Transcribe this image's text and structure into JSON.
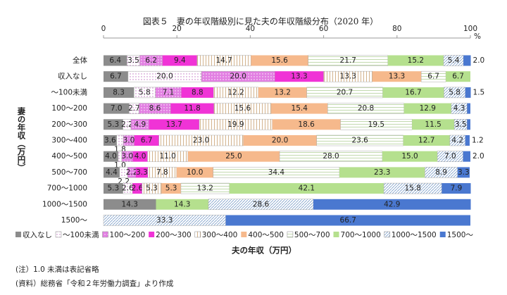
{
  "chart_data": {
    "type": "stacked-bar-horizontal",
    "title": "図表５　妻の年収階級別に見た夫の年収階級分布（2020 年）",
    "x_label": "夫の年収（万円）",
    "y_label": "妻の年収（万円）",
    "x_unit": "%",
    "categories": [
      "全体",
      "収入なし",
      "～100未満",
      "100～200",
      "200～300",
      "300～400",
      "400～500",
      "500～700",
      "700～1000",
      "1000～1500",
      "1500～"
    ],
    "xlim": [
      0,
      100
    ],
    "xticks": [
      0,
      20,
      40,
      60,
      80,
      100
    ],
    "legend": "bottom",
    "series": [
      {
        "name": "収入なし",
        "color": "#8c8c8c",
        "values": [
          6.4,
          6.7,
          8.3,
          7.0,
          5.3,
          3.6,
          4.0,
          4.4,
          5.3,
          14.3,
          null
        ],
        "value_labels": [
          "6.4",
          "6.7",
          "8.3",
          "7.0",
          "5.3",
          "3.6",
          "4.0",
          "4.4",
          "5.3",
          "14.3",
          null
        ]
      },
      {
        "name": "～100未満",
        "color": "#f0c8f0",
        "pattern": "dots",
        "values": [
          3.5,
          20.0,
          5.8,
          2.7,
          2.2,
          1.8,
          1.0,
          2.2,
          2.6,
          null,
          null
        ],
        "value_labels": [
          "3.5",
          "20.0",
          "5.8",
          "2.7",
          "2.2",
          "1.8",
          "1.0",
          "2.2",
          "2.6",
          null,
          null
        ]
      },
      {
        "name": "100～200",
        "color": "#e27fe2",
        "pattern": "dots",
        "values": [
          6.2,
          20.0,
          7.1,
          8.6,
          4.9,
          3.0,
          3.0,
          2.2,
          null,
          null,
          null
        ],
        "value_labels": [
          "6.2",
          "20.0",
          "7.1",
          "8.6",
          "4.9",
          "3.0",
          "3.0",
          "2.2",
          null,
          null,
          null
        ]
      },
      {
        "name": "200～300",
        "color": "#f033d6",
        "values": [
          9.4,
          13.3,
          8.8,
          11.8,
          13.7,
          6.7,
          4.0,
          3.3,
          2.6,
          null,
          null
        ],
        "value_labels": [
          "9.4",
          "13.3",
          "8.8",
          "11.8",
          "13.7",
          "6.7",
          "4.0",
          "3.3",
          "2.6",
          null,
          null
        ]
      },
      {
        "name": "300～400",
        "color": "#c8a070",
        "pattern": "vstripes",
        "values": [
          14.7,
          13.3,
          12.2,
          15.6,
          19.9,
          23.0,
          11.0,
          7.8,
          5.3,
          null,
          null
        ],
        "value_labels": [
          "14.7",
          "13.3",
          "12.2",
          "15.6",
          "19.9",
          "23.0",
          "11.0",
          "7.8",
          "5.3",
          null,
          null
        ]
      },
      {
        "name": "400～500",
        "color": "#f6b98c",
        "values": [
          15.6,
          13.3,
          13.2,
          15.4,
          18.6,
          20.0,
          25.0,
          10.0,
          5.3,
          null,
          null
        ],
        "value_labels": [
          "15.6",
          "13.3",
          "13.2",
          "15.4",
          "18.6",
          "20.0",
          "25.0",
          "10.0",
          "5.3",
          null,
          null
        ]
      },
      {
        "name": "500～700",
        "color": "#9cc27a",
        "pattern": "hstripes",
        "values": [
          21.7,
          6.7,
          20.7,
          20.8,
          19.5,
          23.6,
          28.0,
          34.4,
          13.2,
          null,
          null
        ],
        "value_labels": [
          "21.7",
          "6.7",
          "20.7",
          "20.8",
          "19.5",
          "23.6",
          "28.0",
          "34.4",
          "13.2",
          null,
          null
        ]
      },
      {
        "name": "700～1000",
        "color": "#b5e08e",
        "values": [
          15.2,
          6.7,
          16.7,
          12.9,
          11.5,
          12.7,
          15.0,
          23.3,
          42.1,
          14.3,
          null
        ],
        "value_labels": [
          "15.2",
          "6.7",
          "16.7",
          "12.9",
          "11.5",
          "12.7",
          "15.0",
          "23.3",
          "42.1",
          "14.3",
          null
        ]
      },
      {
        "name": "1000～1500",
        "color": "#7a9cc8",
        "pattern": "hatch",
        "values": [
          5.4,
          null,
          5.8,
          4.3,
          3.5,
          4.2,
          7.0,
          8.9,
          15.8,
          28.6,
          33.3
        ],
        "value_labels": [
          "5.4",
          null,
          "5.8",
          "4.3",
          "3.5",
          "4.2",
          "7.0",
          "8.9",
          "15.8",
          "28.6",
          "33.3"
        ]
      },
      {
        "name": "1500～",
        "color": "#4a78d0",
        "values": [
          2.0,
          null,
          1.5,
          0.9,
          0.9,
          1.2,
          2.0,
          3.3,
          7.9,
          42.9,
          66.7
        ],
        "value_labels": [
          "2.0",
          null,
          "1.5",
          null,
          null,
          "1.2",
          "2.0",
          "3.3",
          "7.9",
          "42.9",
          "66.7"
        ]
      }
    ],
    "notes": [
      "(注）1.0 未満は表記省略",
      "(資料）総務省「令和２年労働力調査」より作成"
    ]
  }
}
